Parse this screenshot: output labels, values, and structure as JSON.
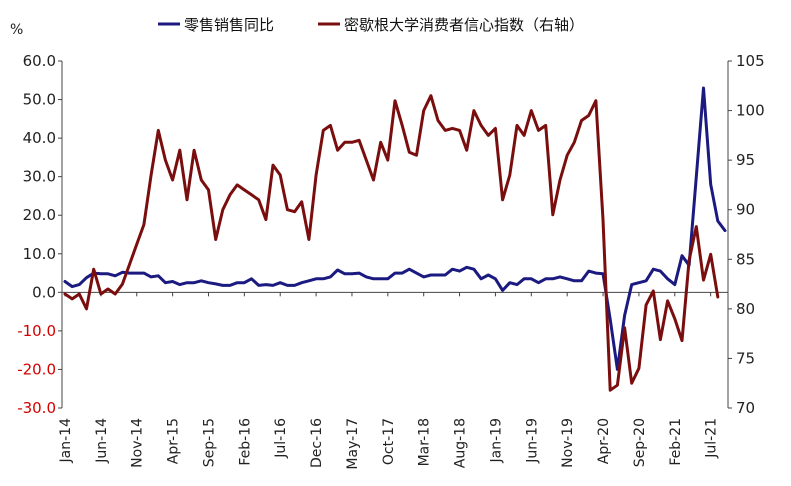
{
  "chart_data": {
    "type": "line",
    "y_unit_label": "%",
    "legend_placement": "top",
    "grid": false,
    "left_axis": {
      "ylim": [
        -30,
        60
      ],
      "ticks": [
        -30,
        -20,
        -10,
        0,
        10,
        20,
        30,
        40,
        50,
        60
      ],
      "tick_labels": [
        "-30.0",
        "-20.0",
        "-10.0",
        "0.0",
        "10.0",
        "20.0",
        "30.0",
        "40.0",
        "50.0",
        "60.0"
      ]
    },
    "right_axis": {
      "ylim": [
        70,
        105
      ],
      "ticks": [
        70,
        75,
        80,
        85,
        90,
        95,
        100,
        105
      ],
      "tick_labels": [
        "70",
        "75",
        "80",
        "85",
        "90",
        "95",
        "100",
        "105"
      ]
    },
    "x_tick_labels": [
      "Jan-14",
      "Jun-14",
      "Nov-14",
      "Apr-15",
      "Sep-15",
      "Feb-16",
      "Jul-16",
      "Dec-16",
      "May-17",
      "Oct-17",
      "Mar-18",
      "Aug-18",
      "Jan-19",
      "Jun-19",
      "Nov-19",
      "Apr-20",
      "Sep-20",
      "Feb-21",
      "Jul-21"
    ],
    "x_tick_index": [
      0,
      5,
      10,
      15,
      20,
      25,
      30,
      35,
      40,
      45,
      50,
      55,
      60,
      65,
      70,
      75,
      80,
      85,
      90
    ],
    "series": [
      {
        "name": "零售销售同比",
        "axis": "left",
        "color": "#1a1a80",
        "values": [
          2.8,
          1.5,
          2.0,
          3.8,
          5.0,
          4.8,
          4.8,
          4.3,
          5.2,
          5.0,
          5.0,
          5.0,
          4.0,
          4.3,
          2.5,
          2.8,
          2.0,
          2.5,
          2.5,
          3.0,
          2.5,
          2.2,
          1.8,
          1.8,
          2.5,
          2.5,
          3.5,
          1.8,
          2.0,
          1.8,
          2.5,
          1.8,
          1.8,
          2.5,
          3.0,
          3.5,
          3.5,
          4.0,
          5.8,
          4.8,
          4.8,
          5.0,
          4.0,
          3.5,
          3.5,
          3.5,
          5.0,
          5.0,
          6.0,
          5.0,
          4.0,
          4.5,
          4.5,
          4.5,
          6.0,
          5.5,
          6.5,
          6.0,
          3.5,
          4.5,
          3.5,
          0.5,
          2.5,
          2.0,
          3.5,
          3.5,
          2.5,
          3.5,
          3.5,
          4.0,
          3.5,
          3.0,
          3.0,
          5.5,
          5.0,
          4.8,
          -7.0,
          -20.0,
          -6.0,
          2.0,
          2.5,
          3.0,
          6.0,
          5.5,
          3.5,
          2.0,
          9.5,
          7.0,
          30.0,
          53.0,
          28.0,
          18.5,
          16.0
        ]
      },
      {
        "name": "密歇根大学消费者信心指数（右轴）",
        "axis": "right",
        "color": "#7a0e0e",
        "values": [
          81.5,
          81.0,
          81.5,
          80.0,
          84.0,
          81.5,
          82.0,
          81.5,
          82.5,
          84.5,
          86.5,
          88.5,
          93.5,
          98.0,
          95.0,
          93.0,
          96.0,
          91.0,
          96.0,
          93.0,
          92.0,
          87.0,
          90.0,
          91.5,
          92.5,
          92.0,
          91.5,
          91.0,
          89.0,
          94.5,
          93.5,
          90.0,
          89.8,
          90.8,
          87.0,
          93.5,
          98.0,
          98.5,
          96.0,
          96.8,
          96.8,
          97.0,
          95.0,
          93.0,
          96.8,
          95.0,
          101.0,
          98.5,
          95.8,
          95.5,
          100.0,
          101.5,
          99.0,
          98.0,
          98.2,
          98.0,
          96.0,
          100.0,
          98.5,
          97.5,
          98.2,
          91.0,
          93.5,
          98.5,
          97.5,
          100.0,
          98.0,
          98.5,
          89.5,
          93.0,
          95.5,
          96.8,
          99.0,
          99.5,
          101.0,
          89.0,
          71.8,
          72.3,
          78.1,
          72.5,
          74.0,
          80.4,
          81.8,
          76.9,
          80.8,
          79.0,
          76.8,
          84.9,
          88.3,
          82.9,
          85.5,
          81.2
        ]
      }
    ]
  }
}
